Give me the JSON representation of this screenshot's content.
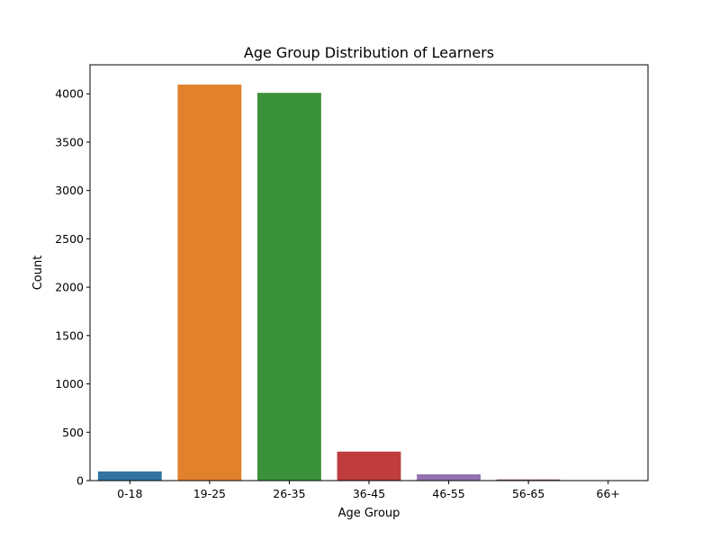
{
  "chart_data": {
    "type": "bar",
    "title": "Age Group Distribution of Learners",
    "xlabel": "Age Group",
    "ylabel": "Count",
    "categories": [
      "0-18",
      "19-25",
      "26-35",
      "36-45",
      "46-55",
      "56-65",
      "66+"
    ],
    "values": [
      95,
      4095,
      4010,
      300,
      65,
      12,
      3
    ],
    "colors": [
      "#3274a1",
      "#e1812c",
      "#3a923a",
      "#c03d3e",
      "#9372b2",
      "#845b53",
      "#d684bd"
    ],
    "ylim": [
      0,
      4300
    ],
    "yticks": [
      0,
      500,
      1000,
      1500,
      2000,
      2500,
      3000,
      3500,
      4000
    ],
    "ytick_labels": [
      "0",
      "500",
      "1000",
      "1500",
      "2000",
      "2500",
      "3000",
      "3500",
      "4000"
    ],
    "grid": false,
    "legend": "none"
  }
}
